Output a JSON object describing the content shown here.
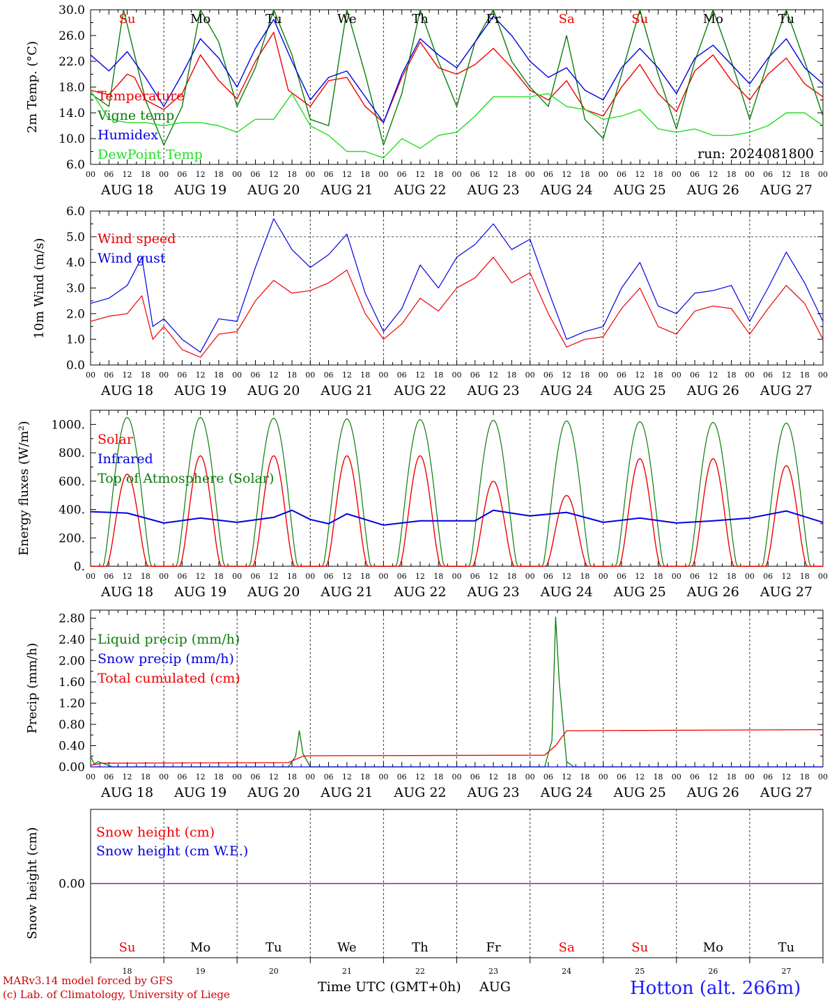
{
  "colors": {
    "red": "#ee0000",
    "green": "#0a7d0a",
    "blue": "#0000e0",
    "lightgreen": "#22dd22",
    "purple": "#7a2a9a"
  },
  "days": {
    "dates": [
      "AUG 18",
      "AUG 19",
      "AUG 20",
      "AUG 21",
      "AUG 22",
      "AUG 23",
      "AUG 24",
      "AUG 25",
      "AUG 26",
      "AUG 27"
    ],
    "weekdays": [
      "Su",
      "Mo",
      "Tu",
      "We",
      "Th",
      "Fr",
      "Sa",
      "Su",
      "Mo",
      "Tu"
    ],
    "weekday_colors": [
      "#ee0000",
      "#000000",
      "#000000",
      "#000000",
      "#000000",
      "#000000",
      "#ee0000",
      "#ee0000",
      "#000000",
      "#000000"
    ],
    "day_numbers": [
      "18",
      "19",
      "20",
      "21",
      "22",
      "23",
      "24",
      "25",
      "26",
      "27"
    ],
    "hours": [
      "00",
      "06",
      "12",
      "18"
    ],
    "end_hour": "00"
  },
  "footer": {
    "model_line": "MARv3.14 model forced by GFS",
    "copyright_line": "(c) Lab. of Climatology, University of Liege",
    "time_axis_label": "Time UTC (GMT+0h)",
    "month": "AUG",
    "station": "Hotton (alt. 266m)"
  },
  "chart_data": [
    {
      "type": "line",
      "id": "temperature",
      "ylabel": "2m Temp. (°C)",
      "ylim": [
        6.0,
        30.0
      ],
      "yticks": [
        "30.0",
        "26.0",
        "22.0",
        "18.0",
        "14.0",
        "10.0",
        "6.0"
      ],
      "annotation": "run: 2024081800",
      "x_unit": "days since AUG 18 00 UTC",
      "series": [
        {
          "name": "Temperature",
          "color": "red",
          "x": [
            0,
            0.25,
            0.5,
            0.6,
            0.75,
            1,
            1.25,
            1.5,
            1.75,
            2,
            2.25,
            2.5,
            2.7,
            3,
            3.25,
            3.5,
            3.75,
            4,
            4.25,
            4.5,
            4.75,
            5,
            5.25,
            5.5,
            5.75,
            6,
            6.25,
            6.5,
            6.75,
            7,
            7.25,
            7.5,
            7.75,
            8,
            8.25,
            8.5,
            8.75,
            9,
            9.25,
            9.5,
            9.75,
            10
          ],
          "values": [
            17.5,
            16.8,
            20.0,
            19.5,
            16.0,
            14.5,
            17.0,
            23.0,
            19.0,
            16.2,
            22.0,
            26.5,
            17.5,
            15.0,
            19.0,
            19.5,
            15.0,
            12.5,
            19.5,
            25.0,
            21.0,
            20.0,
            21.5,
            24.0,
            21.0,
            17.5,
            16.0,
            19.0,
            14.5,
            13.5,
            18.0,
            21.5,
            17.0,
            14.2,
            20.5,
            23.0,
            19.0,
            16.0,
            20.0,
            22.5,
            18.5,
            16.5
          ]
        },
        {
          "name": "Vigne temp",
          "color": "green",
          "x": [
            0,
            0.25,
            0.45,
            0.6,
            0.75,
            1,
            1.25,
            1.5,
            1.75,
            2,
            2.25,
            2.5,
            2.75,
            3,
            3.25,
            3.5,
            3.75,
            4,
            4.25,
            4.5,
            4.75,
            5,
            5.25,
            5.5,
            5.75,
            6,
            6.25,
            6.5,
            6.75,
            7,
            7.25,
            7.5,
            7.75,
            8,
            8.25,
            8.5,
            8.75,
            9,
            9.25,
            9.5,
            9.75,
            10
          ],
          "values": [
            17.0,
            15.0,
            30.0,
            23.0,
            16.0,
            9.0,
            15.0,
            30.0,
            25.0,
            15.0,
            21.0,
            30.0,
            23.0,
            13.0,
            12.0,
            30.0,
            20.0,
            9.0,
            17.0,
            30.0,
            22.0,
            15.0,
            25.0,
            30.0,
            22.0,
            18.0,
            15.0,
            26.0,
            13.0,
            10.0,
            20.0,
            30.0,
            20.0,
            11.5,
            22.0,
            30.0,
            22.0,
            13.0,
            22.0,
            30.0,
            22.0,
            13.5
          ]
        },
        {
          "name": "Humidex",
          "color": "blue",
          "x": [
            0,
            0.25,
            0.5,
            0.75,
            1,
            1.25,
            1.5,
            1.75,
            2,
            2.25,
            2.5,
            2.75,
            3,
            3.25,
            3.5,
            3.75,
            4,
            4.25,
            4.5,
            4.75,
            5,
            5.25,
            5.5,
            5.75,
            6,
            6.25,
            6.5,
            6.75,
            7,
            7.25,
            7.5,
            7.75,
            8,
            8.25,
            8.5,
            8.75,
            9,
            9.25,
            9.5,
            9.75,
            10
          ],
          "values": [
            23.0,
            20.5,
            23.5,
            19.5,
            15.0,
            20.0,
            25.5,
            22.5,
            18.0,
            24.0,
            28.5,
            22.0,
            16.0,
            19.5,
            20.5,
            16.5,
            12.5,
            20.0,
            25.5,
            23.0,
            21.0,
            25.0,
            29.0,
            26.0,
            22.0,
            19.5,
            21.0,
            17.5,
            16.0,
            21.0,
            24.0,
            21.0,
            17.0,
            22.5,
            24.5,
            21.5,
            18.5,
            22.5,
            25.5,
            21.0,
            18.5
          ]
        },
        {
          "name": "DewPoint Temp",
          "color": "lightgreen",
          "x": [
            0,
            0.25,
            0.5,
            0.75,
            1,
            1.25,
            1.5,
            1.75,
            2,
            2.25,
            2.5,
            2.75,
            3,
            3.25,
            3.5,
            3.75,
            4,
            4.25,
            4.5,
            4.75,
            5,
            5.25,
            5.5,
            5.75,
            6,
            6.25,
            6.5,
            6.75,
            7,
            7.25,
            7.5,
            7.75,
            8,
            8.25,
            8.5,
            8.75,
            9,
            9.25,
            9.5,
            9.75,
            10
          ],
          "values": [
            17.5,
            13.0,
            12.5,
            12.5,
            12.0,
            12.5,
            12.5,
            12.0,
            11.0,
            13.0,
            13.0,
            17.0,
            12.0,
            10.5,
            8.0,
            8.0,
            7.0,
            10.0,
            8.5,
            10.5,
            11.0,
            13.5,
            16.5,
            16.5,
            16.5,
            17.0,
            15.0,
            14.5,
            13.0,
            13.5,
            14.5,
            11.5,
            11.0,
            11.5,
            10.5,
            10.5,
            11.0,
            12.0,
            14.0,
            14.0,
            12.0
          ]
        }
      ]
    },
    {
      "type": "line",
      "id": "wind",
      "ylabel": "10m Wind (m/s)",
      "ylim": [
        0.0,
        6.0
      ],
      "yticks": [
        "6.0",
        "5.0",
        "4.0",
        "3.0",
        "2.0",
        "1.0",
        "0.0"
      ],
      "x_unit": "days since AUG 18 00 UTC",
      "series": [
        {
          "name": "Wind speed",
          "color": "red",
          "x": [
            0,
            0.25,
            0.5,
            0.7,
            0.85,
            1,
            1.25,
            1.5,
            1.75,
            2,
            2.25,
            2.5,
            2.75,
            3,
            3.25,
            3.5,
            3.75,
            4,
            4.25,
            4.5,
            4.75,
            5,
            5.25,
            5.5,
            5.75,
            6,
            6.25,
            6.5,
            6.75,
            7,
            7.25,
            7.5,
            7.75,
            8,
            8.25,
            8.5,
            8.75,
            9,
            9.25,
            9.5,
            9.75,
            10
          ],
          "values": [
            1.7,
            1.9,
            2.0,
            2.7,
            1.0,
            1.5,
            0.6,
            0.3,
            1.2,
            1.3,
            2.5,
            3.3,
            2.8,
            2.9,
            3.2,
            3.7,
            2.0,
            1.0,
            1.6,
            2.6,
            2.1,
            3.0,
            3.4,
            4.2,
            3.2,
            3.6,
            2.0,
            0.7,
            1.0,
            1.1,
            2.2,
            3.0,
            1.5,
            1.2,
            2.1,
            2.3,
            2.2,
            1.2,
            2.2,
            3.1,
            2.4,
            1.0
          ]
        },
        {
          "name": "Wind gust",
          "color": "blue",
          "x": [
            0,
            0.25,
            0.5,
            0.7,
            0.85,
            1,
            1.25,
            1.5,
            1.75,
            2,
            2.25,
            2.5,
            2.75,
            3,
            3.25,
            3.5,
            3.75,
            4,
            4.25,
            4.5,
            4.75,
            5,
            5.25,
            5.5,
            5.75,
            6,
            6.25,
            6.5,
            6.75,
            7,
            7.25,
            7.5,
            7.75,
            8,
            8.25,
            8.5,
            8.75,
            9,
            9.25,
            9.5,
            9.75,
            10
          ],
          "values": [
            2.4,
            2.6,
            3.1,
            4.2,
            1.5,
            1.8,
            1.0,
            0.5,
            1.8,
            1.7,
            3.8,
            5.7,
            4.5,
            3.8,
            4.3,
            5.1,
            2.8,
            1.3,
            2.2,
            3.9,
            3.0,
            4.2,
            4.7,
            5.5,
            4.5,
            4.9,
            2.9,
            1.0,
            1.3,
            1.5,
            3.0,
            4.0,
            2.3,
            2.0,
            2.8,
            2.9,
            3.1,
            1.7,
            3.0,
            4.4,
            3.2,
            1.7
          ]
        }
      ]
    },
    {
      "type": "line",
      "id": "energy",
      "ylabel": "Energy fluxes (W/m²)",
      "ylim": [
        0,
        1100
      ],
      "yticks": [
        "1000.",
        "800.",
        "600.",
        "400.",
        "200.",
        "0."
      ],
      "ytick_values": [
        1000,
        800,
        600,
        400,
        200,
        0
      ],
      "x_unit": "days since AUG 18 00 UTC",
      "daily_peaks": {
        "Solar": [
          650,
          780,
          780,
          780,
          780,
          600,
          500,
          760,
          760,
          710
        ],
        "Top of Atmosphere (Solar)": [
          1050,
          1050,
          1045,
          1040,
          1035,
          1030,
          1025,
          1020,
          1015,
          1010
        ]
      },
      "series": [
        {
          "name": "Solar",
          "color": "red"
        },
        {
          "name": "Infrared",
          "color": "blue",
          "x": [
            0,
            0.5,
            1,
            1.5,
            2,
            2.5,
            2.75,
            3,
            3.25,
            3.5,
            4,
            4.5,
            5,
            5.25,
            5.5,
            6,
            6.5,
            7,
            7.5,
            8,
            8.5,
            9,
            9.5,
            10
          ],
          "values": [
            385,
            375,
            305,
            340,
            310,
            345,
            395,
            330,
            300,
            370,
            290,
            320,
            320,
            320,
            395,
            355,
            380,
            310,
            340,
            305,
            320,
            340,
            390,
            310
          ]
        },
        {
          "name": "Top of Atmosphere (Solar)",
          "color": "green"
        }
      ]
    },
    {
      "type": "line",
      "id": "precip",
      "ylabel": "Precip (mm/h)",
      "ylim": [
        0.0,
        2.95
      ],
      "yticks": [
        "2.80",
        "2.40",
        "2.00",
        "1.60",
        "1.20",
        "0.80",
        "0.40",
        "0.00"
      ],
      "ytick_values": [
        2.8,
        2.4,
        2.0,
        1.6,
        1.2,
        0.8,
        0.4,
        0.0
      ],
      "x_unit": "days since AUG 18 00 UTC",
      "series": [
        {
          "name": "Liquid precip (mm/h)",
          "color": "green",
          "x": [
            0,
            0.05,
            0.1,
            0.2,
            0.3,
            2.7,
            2.8,
            2.85,
            2.9,
            3.0,
            6.2,
            6.3,
            6.35,
            6.4,
            6.5,
            6.6,
            10
          ],
          "values": [
            0.2,
            0.05,
            0.1,
            0.05,
            0.0,
            0.0,
            0.2,
            0.68,
            0.25,
            0.0,
            0.0,
            0.5,
            2.82,
            1.6,
            0.1,
            0.0,
            0.0
          ]
        },
        {
          "name": "Snow precip (mm/h)",
          "color": "blue",
          "x": [
            0,
            10
          ],
          "values": [
            0,
            0
          ]
        },
        {
          "name": "Total cumulated (cm)",
          "color": "red",
          "x": [
            0,
            0.15,
            2.7,
            2.9,
            3.0,
            6.2,
            6.35,
            6.5,
            10
          ],
          "values": [
            0.03,
            0.07,
            0.08,
            0.2,
            0.21,
            0.22,
            0.4,
            0.68,
            0.7
          ]
        }
      ]
    },
    {
      "type": "line",
      "id": "snow",
      "ylabel": "Snow height (cm)",
      "yticks": [
        "0.00"
      ],
      "x_unit": "days since AUG 18 00 UTC",
      "series": [
        {
          "name": "Snow height (cm)",
          "color": "red",
          "x": [
            0,
            10
          ],
          "values": [
            0,
            0
          ]
        },
        {
          "name": "Snow height (cm W.E.)",
          "color": "blue",
          "x": [
            0,
            10
          ],
          "values": [
            0,
            0
          ]
        }
      ]
    }
  ]
}
